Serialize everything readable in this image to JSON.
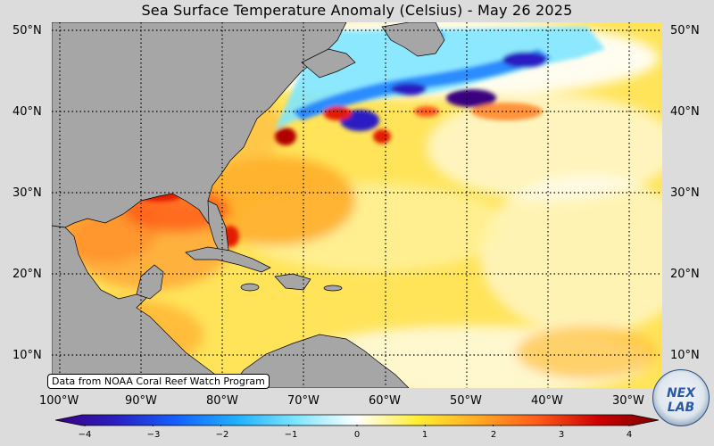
{
  "title": "Sea Surface Temperature Anomaly (Celsius) - May 26 2025",
  "lat_labels": [
    "50°N",
    "40°N",
    "30°N",
    "20°N",
    "10°N"
  ],
  "lat_labels_right": [
    "50°N",
    "40°N",
    "30°N",
    "20°N",
    "10°N"
  ],
  "lon_labels": [
    "100°W",
    "90°W",
    "80°W",
    "70°W",
    "60°W",
    "50°W",
    "40°W",
    "30°W"
  ],
  "colorbar": {
    "ticks": [
      "−4",
      "−3",
      "−2",
      "−1",
      "0",
      "1",
      "2",
      "3",
      "4"
    ],
    "colors": [
      "#3b0080",
      "#2a1fc2",
      "#1460ff",
      "#1fb0ff",
      "#7fe6ff",
      "#ffffff",
      "#ffee33",
      "#ffaa22",
      "#ff5a1a",
      "#cc0000",
      "#7a0000"
    ]
  },
  "source": "Data from NOAA Coral Reef Watch Program",
  "logo_text": "NEX LAB",
  "colors": {
    "land": "#a6a6a6",
    "warm_base": "#ffdf3a",
    "hot": "#ff7a1a",
    "very_hot": "#e21b00",
    "cold": "#3a35d6",
    "cool": "#53b9ff"
  }
}
